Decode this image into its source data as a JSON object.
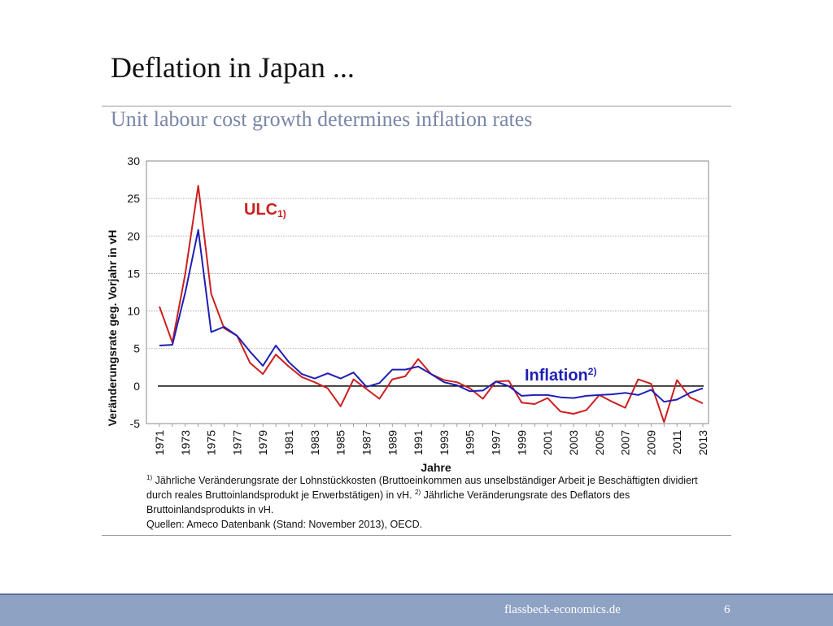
{
  "slide": {
    "title": "Deflation in Japan ...",
    "subtitle": "Unit labour cost growth determines inflation rates",
    "footnote": {
      "n1_marker": "1)",
      "n1_text": " Jährliche Veränderungsrate der Lohnstückkosten (Bruttoeinkommen aus unselbständiger Arbeit je Beschäftigten dividiert durch reales Bruttoinlandsprodukt je Erwerbstätigen) in vH. ",
      "n2_marker": "2)",
      "n2_text": " Jährliche Veränderungsrate des Deflators des Bruttoinlandsprodukts in vH.",
      "sources": "Quellen: Ameco Datenbank (Stand: November 2013), OECD."
    },
    "footer": {
      "site": "flassbeck-economics.de",
      "page": "6"
    }
  },
  "chart_data": {
    "type": "line",
    "xlabel": "Jahre",
    "ylabel": "Veränderungsrate geg. Vorjahr in vH",
    "ylim": [
      -5,
      30
    ],
    "yticks": [
      -5,
      0,
      5,
      10,
      15,
      20,
      25,
      30
    ],
    "x": [
      1971,
      1972,
      1973,
      1974,
      1975,
      1976,
      1977,
      1978,
      1979,
      1980,
      1981,
      1982,
      1983,
      1984,
      1985,
      1986,
      1987,
      1988,
      1989,
      1990,
      1991,
      1992,
      1993,
      1994,
      1995,
      1996,
      1997,
      1998,
      1999,
      2000,
      2001,
      2002,
      2003,
      2004,
      2005,
      2006,
      2007,
      2008,
      2009,
      2010,
      2011,
      2012,
      2013
    ],
    "xticks": [
      "1971",
      "1973",
      "1975",
      "1977",
      "1979",
      "1981",
      "1983",
      "1985",
      "1987",
      "1989",
      "1991",
      "1993",
      "1995",
      "1997",
      "1999",
      "2001",
      "2003",
      "2005",
      "2007",
      "2009",
      "2011",
      "2013"
    ],
    "grid": true,
    "series": [
      {
        "name": "ULC",
        "label": "ULC",
        "marker": "1)",
        "color": "#cc1f1f",
        "values": [
          10.6,
          5.8,
          15.0,
          26.7,
          12.3,
          7.7,
          6.7,
          3.1,
          1.6,
          4.2,
          2.6,
          1.2,
          0.5,
          -0.3,
          -2.7,
          0.9,
          -0.4,
          -1.7,
          0.9,
          1.3,
          3.6,
          1.6,
          0.8,
          0.5,
          -0.3,
          -1.7,
          0.6,
          0.7,
          -2.2,
          -2.4,
          -1.6,
          -3.4,
          -3.7,
          -3.2,
          -1.2,
          -2.1,
          -2.9,
          0.9,
          0.3,
          -4.8,
          0.8,
          -1.5,
          -2.3
        ]
      },
      {
        "name": "Inflation",
        "label": "Inflation",
        "marker": "2)",
        "color": "#1f1fb4",
        "values": [
          5.4,
          5.5,
          12.5,
          20.8,
          7.2,
          7.9,
          6.7,
          4.6,
          2.7,
          5.4,
          3.2,
          1.6,
          1.0,
          1.7,
          1.0,
          1.8,
          -0.1,
          0.4,
          2.2,
          2.2,
          2.6,
          1.6,
          0.5,
          0.1,
          -0.7,
          -0.6,
          0.6,
          0.0,
          -1.3,
          -1.2,
          -1.2,
          -1.5,
          -1.6,
          -1.3,
          -1.2,
          -1.1,
          -0.9,
          -1.2,
          -0.5,
          -2.1,
          -1.8,
          -0.9,
          -0.3
        ]
      }
    ]
  }
}
